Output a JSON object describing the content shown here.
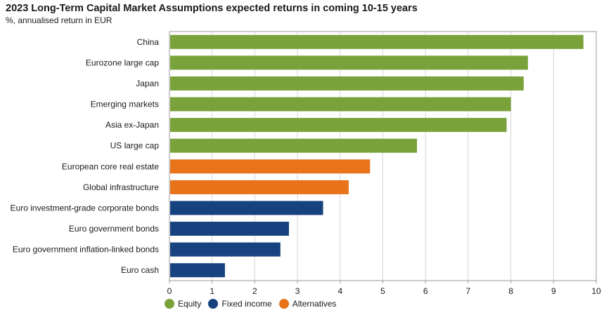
{
  "chart_data": {
    "type": "bar",
    "orientation": "horizontal",
    "title": "2023 Long-Term Capital Market Assumptions expected returns in coming 10-15 years",
    "subtitle": "%, annualised return in EUR",
    "xlabel": "",
    "ylabel": "",
    "xlim": [
      0,
      10
    ],
    "xticks": [
      "0",
      "1",
      "2",
      "3",
      "4",
      "5",
      "6",
      "7",
      "8",
      "9",
      "10"
    ],
    "grid": true,
    "legend_position": "bottom-left",
    "categories": [
      "China",
      "Eurozone large cap",
      "Japan",
      "Emerging markets",
      "Asia ex-Japan",
      "US large cap",
      "European core real estate",
      "Global infrastructure",
      "Euro investment-grade corporate bonds",
      "Euro government bonds",
      "Euro government inflation-linked bonds",
      "Euro cash"
    ],
    "values": [
      9.7,
      8.4,
      8.3,
      8.0,
      7.9,
      5.8,
      4.7,
      4.2,
      3.6,
      2.8,
      2.6,
      1.3
    ],
    "groups": [
      "Equity",
      "Equity",
      "Equity",
      "Equity",
      "Equity",
      "Equity",
      "Alternatives",
      "Alternatives",
      "Fixed income",
      "Fixed income",
      "Fixed income",
      "Fixed income"
    ],
    "legend": [
      {
        "name": "Equity",
        "color": "#7aa23b"
      },
      {
        "name": "Fixed income",
        "color": "#16427f"
      },
      {
        "name": "Alternatives",
        "color": "#e8731a"
      }
    ]
  }
}
